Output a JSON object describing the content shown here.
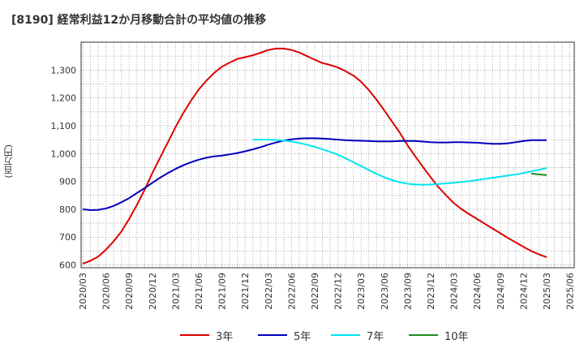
{
  "title": "[8190]  経常利益12か月移動合計の平均値の推移",
  "unit_label": "(百万円)",
  "chart_data": {
    "type": "line",
    "title": "[8190]  経常利益12か月移動合計の平均値の推移",
    "ylabel": "(百万円)",
    "xlabel": "",
    "ylim": [
      590,
      1400
    ],
    "yticks": [
      600,
      700,
      800,
      900,
      1000,
      1100,
      1200,
      1300
    ],
    "ytick_labels": [
      "600",
      "700",
      "800",
      "900",
      "1,000",
      "1,100",
      "1,200",
      "1,300"
    ],
    "xticks": [
      "2020/03",
      "2020/06",
      "2020/09",
      "2020/12",
      "2021/03",
      "2021/06",
      "2021/09",
      "2021/12",
      "2022/03",
      "2022/06",
      "2022/09",
      "2022/12",
      "2023/03",
      "2023/06",
      "2023/09",
      "2023/12",
      "2024/03",
      "2024/06",
      "2024/09",
      "2024/12",
      "2025/03",
      "2025/06"
    ],
    "grid": true,
    "legend_position": "bottom",
    "series": [
      {
        "name": "3年",
        "color": "#dd0000",
        "points": [
          [
            "2020/03",
            605
          ],
          [
            "2020/04",
            615
          ],
          [
            "2020/05",
            630
          ],
          [
            "2020/06",
            655
          ],
          [
            "2020/07",
            685
          ],
          [
            "2020/08",
            720
          ],
          [
            "2020/09",
            765
          ],
          [
            "2020/10",
            815
          ],
          [
            "2020/11",
            870
          ],
          [
            "2020/12",
            930
          ],
          [
            "2021/01",
            985
          ],
          [
            "2021/02",
            1040
          ],
          [
            "2021/03",
            1095
          ],
          [
            "2021/04",
            1145
          ],
          [
            "2021/05",
            1190
          ],
          [
            "2021/06",
            1230
          ],
          [
            "2021/07",
            1262
          ],
          [
            "2021/08",
            1290
          ],
          [
            "2021/09",
            1312
          ],
          [
            "2021/10",
            1327
          ],
          [
            "2021/11",
            1340
          ],
          [
            "2021/12",
            1346
          ],
          [
            "2022/01",
            1353
          ],
          [
            "2022/02",
            1362
          ],
          [
            "2022/03",
            1372
          ],
          [
            "2022/04",
            1377
          ],
          [
            "2022/05",
            1377
          ],
          [
            "2022/06",
            1372
          ],
          [
            "2022/07",
            1363
          ],
          [
            "2022/08",
            1350
          ],
          [
            "2022/09",
            1337
          ],
          [
            "2022/10",
            1325
          ],
          [
            "2022/11",
            1318
          ],
          [
            "2022/12",
            1309
          ],
          [
            "2023/01",
            1296
          ],
          [
            "2023/02",
            1280
          ],
          [
            "2023/03",
            1258
          ],
          [
            "2023/04",
            1228
          ],
          [
            "2023/05",
            1193
          ],
          [
            "2023/06",
            1155
          ],
          [
            "2023/07",
            1115
          ],
          [
            "2023/08",
            1075
          ],
          [
            "2023/09",
            1030
          ],
          [
            "2023/10",
            990
          ],
          [
            "2023/11",
            952
          ],
          [
            "2023/12",
            915
          ],
          [
            "2024/01",
            880
          ],
          [
            "2024/02",
            850
          ],
          [
            "2024/03",
            822
          ],
          [
            "2024/04",
            800
          ],
          [
            "2024/05",
            782
          ],
          [
            "2024/06",
            765
          ],
          [
            "2024/07",
            748
          ],
          [
            "2024/08",
            731
          ],
          [
            "2024/09",
            714
          ],
          [
            "2024/10",
            697
          ],
          [
            "2024/11",
            681
          ],
          [
            "2024/12",
            665
          ],
          [
            "2025/01",
            650
          ],
          [
            "2025/02",
            638
          ],
          [
            "2025/03",
            628
          ]
        ]
      },
      {
        "name": "5年",
        "color": "#0000bb",
        "points": [
          [
            "2020/03",
            800
          ],
          [
            "2020/04",
            797
          ],
          [
            "2020/05",
            798
          ],
          [
            "2020/06",
            803
          ],
          [
            "2020/07",
            812
          ],
          [
            "2020/08",
            825
          ],
          [
            "2020/09",
            840
          ],
          [
            "2020/10",
            858
          ],
          [
            "2020/11",
            876
          ],
          [
            "2020/12",
            895
          ],
          [
            "2021/01",
            913
          ],
          [
            "2021/02",
            930
          ],
          [
            "2021/03",
            945
          ],
          [
            "2021/04",
            958
          ],
          [
            "2021/05",
            969
          ],
          [
            "2021/06",
            978
          ],
          [
            "2021/07",
            985
          ],
          [
            "2021/08",
            990
          ],
          [
            "2021/09",
            993
          ],
          [
            "2021/10",
            997
          ],
          [
            "2021/11",
            1002
          ],
          [
            "2021/12",
            1008
          ],
          [
            "2022/01",
            1015
          ],
          [
            "2022/02",
            1023
          ],
          [
            "2022/03",
            1032
          ],
          [
            "2022/04",
            1040
          ],
          [
            "2022/05",
            1047
          ],
          [
            "2022/06",
            1051
          ],
          [
            "2022/07",
            1054
          ],
          [
            "2022/08",
            1055
          ],
          [
            "2022/09",
            1055
          ],
          [
            "2022/10",
            1054
          ],
          [
            "2022/11",
            1052
          ],
          [
            "2022/12",
            1050
          ],
          [
            "2023/01",
            1048
          ],
          [
            "2023/02",
            1047
          ],
          [
            "2023/03",
            1046
          ],
          [
            "2023/04",
            1045
          ],
          [
            "2023/05",
            1044
          ],
          [
            "2023/06",
            1044
          ],
          [
            "2023/07",
            1044
          ],
          [
            "2023/08",
            1045
          ],
          [
            "2023/09",
            1045
          ],
          [
            "2023/10",
            1045
          ],
          [
            "2023/11",
            1043
          ],
          [
            "2023/12",
            1041
          ],
          [
            "2024/01",
            1040
          ],
          [
            "2024/02",
            1040
          ],
          [
            "2024/03",
            1041
          ],
          [
            "2024/04",
            1041
          ],
          [
            "2024/05",
            1040
          ],
          [
            "2024/06",
            1039
          ],
          [
            "2024/07",
            1037
          ],
          [
            "2024/08",
            1035
          ],
          [
            "2024/09",
            1035
          ],
          [
            "2024/10",
            1037
          ],
          [
            "2024/11",
            1041
          ],
          [
            "2024/12",
            1045
          ],
          [
            "2025/01",
            1048
          ],
          [
            "2025/02",
            1048
          ],
          [
            "2025/03",
            1048
          ]
        ]
      },
      {
        "name": "7年",
        "color": "#00e5ee",
        "points": [
          [
            "2022/01",
            1050
          ],
          [
            "2022/02",
            1050
          ],
          [
            "2022/03",
            1050
          ],
          [
            "2022/04",
            1049
          ],
          [
            "2022/05",
            1047
          ],
          [
            "2022/06",
            1043
          ],
          [
            "2022/07",
            1038
          ],
          [
            "2022/08",
            1032
          ],
          [
            "2022/09",
            1024
          ],
          [
            "2022/10",
            1015
          ],
          [
            "2022/11",
            1006
          ],
          [
            "2022/12",
            996
          ],
          [
            "2023/01",
            983
          ],
          [
            "2023/02",
            969
          ],
          [
            "2023/03",
            955
          ],
          [
            "2023/04",
            941
          ],
          [
            "2023/05",
            927
          ],
          [
            "2023/06",
            915
          ],
          [
            "2023/07",
            905
          ],
          [
            "2023/08",
            897
          ],
          [
            "2023/09",
            892
          ],
          [
            "2023/10",
            889
          ],
          [
            "2023/11",
            888
          ],
          [
            "2023/12",
            889
          ],
          [
            "2024/01",
            891
          ],
          [
            "2024/02",
            893
          ],
          [
            "2024/03",
            895
          ],
          [
            "2024/04",
            898
          ],
          [
            "2024/05",
            901
          ],
          [
            "2024/06",
            905
          ],
          [
            "2024/07",
            909
          ],
          [
            "2024/08",
            913
          ],
          [
            "2024/09",
            917
          ],
          [
            "2024/10",
            921
          ],
          [
            "2024/11",
            925
          ],
          [
            "2024/12",
            930
          ],
          [
            "2025/01",
            936
          ],
          [
            "2025/02",
            942
          ],
          [
            "2025/03",
            948
          ]
        ]
      },
      {
        "name": "10年",
        "color": "#228b22",
        "points": [
          [
            "2025/01",
            928
          ],
          [
            "2025/02",
            925
          ],
          [
            "2025/03",
            923
          ]
        ]
      }
    ]
  }
}
